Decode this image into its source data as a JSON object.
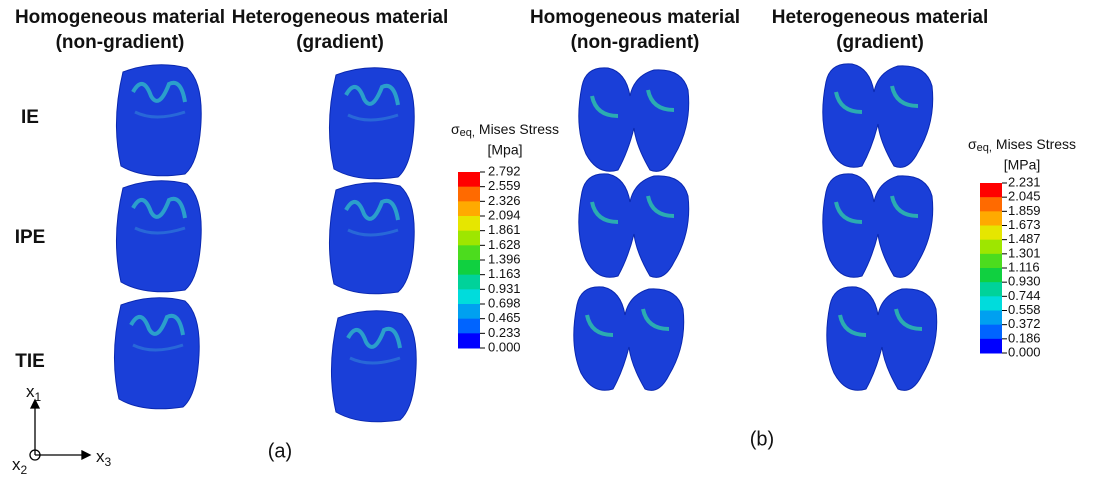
{
  "panels": [
    {
      "label": "(a)",
      "columns": [
        {
          "title": "Homogeneous material",
          "subtitle": "(non-gradient)"
        },
        {
          "title": "Heterogeneous material",
          "subtitle": "(gradient)"
        }
      ],
      "rows": [
        "IE",
        "IPE",
        "TIE"
      ],
      "legend": {
        "symbol": "σ",
        "symbol_sub": "eq,",
        "title": "Mises Stress",
        "unit": "[Mpa]",
        "ticks": [
          "2.792",
          "2.559",
          "2.326",
          "2.094",
          "1.861",
          "1.628",
          "1.396",
          "1.163",
          "0.931",
          "0.698",
          "0.465",
          "0.233",
          "0.000"
        ]
      }
    },
    {
      "label": "(b)",
      "columns": [
        {
          "title": "Homogeneous material",
          "subtitle": "(non-gradient)"
        },
        {
          "title": "Heterogeneous material",
          "subtitle": "(gradient)"
        }
      ],
      "legend": {
        "symbol": "σ",
        "symbol_sub": "eq,",
        "title": "Mises Stress",
        "unit": "[MPa]",
        "ticks": [
          "2.231",
          "2.045",
          "1.859",
          "1.673",
          "1.487",
          "1.301",
          "1.116",
          "0.930",
          "0.744",
          "0.558",
          "0.372",
          "0.186",
          "0.000"
        ]
      }
    }
  ],
  "legend_colors": [
    "#ff0000",
    "#ff6a00",
    "#ffaa00",
    "#e6e600",
    "#9ee600",
    "#4cdc1e",
    "#10d040",
    "#00d29a",
    "#00dcdc",
    "#00a0f0",
    "#0064ff",
    "#0000ff"
  ],
  "axes": {
    "up": {
      "symbol": "x",
      "index": "1"
    },
    "right": {
      "symbol": "x",
      "index": "3"
    },
    "out": {
      "symbol": "x",
      "index": "2"
    }
  }
}
